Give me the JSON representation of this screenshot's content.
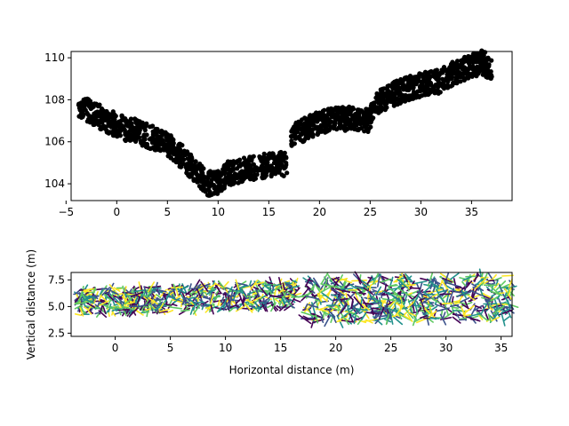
{
  "chart_data": [
    {
      "type": "scatter",
      "title": "",
      "xlabel": "",
      "ylabel": "",
      "xlim": [
        -4.5,
        39.0
      ],
      "ylim": [
        103.2,
        110.3
      ],
      "xticks": [
        -5,
        0,
        5,
        10,
        15,
        20,
        25,
        30,
        35
      ],
      "xtick_labels": [
        "−5",
        "0",
        "5",
        "10",
        "15",
        "20",
        "25",
        "30",
        "35"
      ],
      "yticks": [
        104,
        106,
        108,
        110
      ],
      "ytick_labels": [
        "104",
        "106",
        "108",
        "110"
      ],
      "grid": false,
      "marker_color": "#000000",
      "profile": {
        "x": [
          -3.8,
          -3,
          -2,
          -1,
          0,
          1,
          2,
          3,
          4,
          5,
          6,
          7,
          8,
          9,
          10,
          11,
          12,
          13,
          14,
          15,
          16,
          16.8
        ],
        "y": [
          107.8,
          107.5,
          107.3,
          107.0,
          106.8,
          106.6,
          106.5,
          106.3,
          106.1,
          105.9,
          105.5,
          105.0,
          104.5,
          104.0,
          104.1,
          104.5,
          104.6,
          104.7,
          104.8,
          104.9,
          105.0,
          104.9
        ]
      },
      "profile2": {
        "x": [
          17.2,
          18,
          19,
          20,
          21,
          22,
          23,
          24,
          24.8,
          25.5,
          26,
          27,
          28,
          29,
          30,
          31,
          32,
          33,
          34,
          35,
          36,
          37
        ],
        "y": [
          106.3,
          106.5,
          106.7,
          106.9,
          107.0,
          107.1,
          107.1,
          107.1,
          107.0,
          107.7,
          107.9,
          108.2,
          108.4,
          108.6,
          108.7,
          108.8,
          108.9,
          109.2,
          109.4,
          109.6,
          109.8,
          109.5
        ]
      }
    },
    {
      "type": "scatter",
      "title": "",
      "xlabel": "Horizontal distance (m)",
      "ylabel": "Vertical distance (m)",
      "xlim": [
        -4.0,
        36.0
      ],
      "ylim": [
        2.2,
        8.2
      ],
      "xticks": [
        0,
        5,
        10,
        15,
        20,
        25,
        30,
        35
      ],
      "xtick_labels": [
        "0",
        "5",
        "10",
        "15",
        "20",
        "25",
        "30",
        "35"
      ],
      "yticks": [
        2.5,
        5.0,
        7.5
      ],
      "ytick_labels": [
        "2.5",
        "5.0",
        "7.5"
      ],
      "grid": false,
      "colormap": [
        "#440154",
        "#3b528b",
        "#21918c",
        "#5ec962",
        "#fde725"
      ],
      "band_left": {
        "x_range": [
          -3.5,
          16.5
        ],
        "y_top": [
          6.6,
          7.4
        ],
        "y_bottom": [
          4.2,
          4.9
        ]
      },
      "band_right": {
        "x_range": [
          17.2,
          36.0
        ],
        "y_top": [
          7.7,
          7.9
        ],
        "y_bottom": [
          3.5,
          3.8
        ]
      }
    }
  ]
}
